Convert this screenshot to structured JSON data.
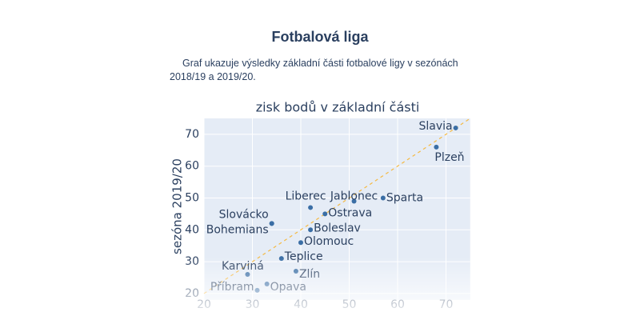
{
  "header": {
    "title": "Fotbalová liga",
    "description": "Graf ukazuje výsledky základní části fotbalové ligy v sezónách 2018/19 a 2019/20."
  },
  "chart_data": {
    "type": "scatter",
    "title": "zisk bodů v základní části",
    "y_label": "sezóna 2019/20",
    "labels": [
      "Slavia",
      "Plzeň",
      "Sparta",
      "Jablonec",
      "Liberec",
      "Ostrava",
      "Slovácko",
      "Bohemians",
      "Boleslav",
      "Olomouc",
      "Teplice",
      "Karviná",
      "Zlín",
      "Příbram",
      "Opava"
    ],
    "x": [
      72,
      68,
      57,
      51,
      42,
      45,
      34,
      34,
      42,
      40,
      36,
      29,
      39,
      31,
      33
    ],
    "values": [
      72,
      66,
      50,
      49,
      47,
      45,
      42,
      42,
      40,
      36,
      31,
      26,
      27,
      21,
      23
    ],
    "color": "#3a6ea5",
    "xlim": [
      20,
      75
    ],
    "ylim": [
      18,
      75
    ],
    "xticks": [
      20,
      30,
      40,
      50,
      60,
      70
    ],
    "yticks": [
      20,
      30,
      40,
      50,
      60,
      70
    ],
    "grid": true,
    "diagonal_color": "#f5b942"
  }
}
